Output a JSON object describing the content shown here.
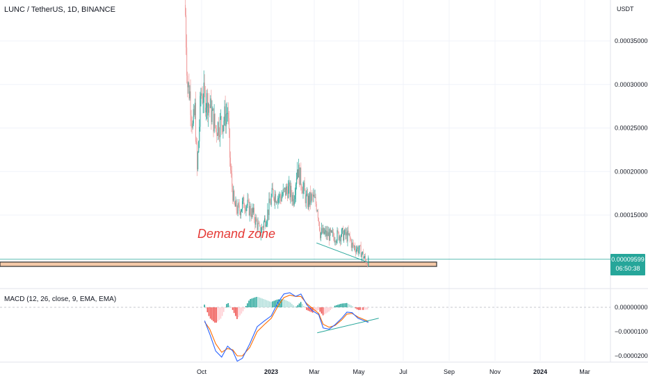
{
  "header": {
    "symbol_title": "LUNC / TetherUS, 1D, BINANCE",
    "currency": "USDT"
  },
  "price_tag": {
    "value": "0.00009599",
    "countdown": "06:50:38",
    "color": "#26a69a"
  },
  "annotation": {
    "text": "Demand zone",
    "color": "#e53935"
  },
  "macd": {
    "title": "MACD (12, 26, close, 9, EMA, EMA)"
  },
  "colors": {
    "up": "#26a69a",
    "down": "#ef9a9a",
    "macd_line": "#2962ff",
    "signal_line": "#ff6d00",
    "trendline": "#26a69a",
    "zone_fill": "#f4c9a8",
    "zone_border": "#3d3d3d"
  },
  "chart_data": [
    {
      "type": "candlestick",
      "title": "LUNC / TetherUS, 1D, BINANCE",
      "ylabel": "USDT",
      "y_ticks": [
        "0.00035000",
        "0.00030000",
        "0.00025000",
        "0.00020000",
        "0.00015000"
      ],
      "x_ticks": [
        "Oct",
        "2023",
        "Mar",
        "May",
        "Jul",
        "Sep",
        "Nov",
        "2024",
        "Mar"
      ],
      "ylim": [
        8.5e-06,
        0.00039
      ],
      "last_price": 9.599e-05,
      "demand_zone": [
        9.1e-05,
        9.6e-05
      ],
      "close_series": [
        {
          "date": "2022-09-09",
          "close": 0.00038
        },
        {
          "date": "2022-09-12",
          "close": 0.0003
        },
        {
          "date": "2022-09-15",
          "close": 0.00029
        },
        {
          "date": "2022-09-19",
          "close": 0.00025
        },
        {
          "date": "2022-09-22",
          "close": 0.00027
        },
        {
          "date": "2022-09-25",
          "close": 0.0002
        },
        {
          "date": "2022-09-30",
          "close": 0.00029
        },
        {
          "date": "2022-10-10",
          "close": 0.00028
        },
        {
          "date": "2022-10-20",
          "close": 0.00025
        },
        {
          "date": "2022-10-31",
          "close": 0.00026
        },
        {
          "date": "2022-11-05",
          "close": 0.00027
        },
        {
          "date": "2022-11-09",
          "close": 0.0002
        },
        {
          "date": "2022-11-14",
          "close": 0.00016
        },
        {
          "date": "2022-11-20",
          "close": 0.000155
        },
        {
          "date": "2022-11-28",
          "close": 0.000165
        },
        {
          "date": "2022-12-10",
          "close": 0.00015
        },
        {
          "date": "2022-12-19",
          "close": 0.00013
        },
        {
          "date": "2022-12-28",
          "close": 0.00015
        },
        {
          "date": "2023-01-05",
          "close": 0.000175
        },
        {
          "date": "2023-01-15",
          "close": 0.00017
        },
        {
          "date": "2023-01-25",
          "close": 0.00018
        },
        {
          "date": "2023-02-02",
          "close": 0.00017
        },
        {
          "date": "2023-02-07",
          "close": 0.000205
        },
        {
          "date": "2023-02-12",
          "close": 0.00019
        },
        {
          "date": "2023-02-20",
          "close": 0.000165
        },
        {
          "date": "2023-02-28",
          "close": 0.00017
        },
        {
          "date": "2023-03-06",
          "close": 0.00016
        },
        {
          "date": "2023-03-10",
          "close": 0.00013
        },
        {
          "date": "2023-03-18",
          "close": 0.000128
        },
        {
          "date": "2023-03-28",
          "close": 0.000125
        },
        {
          "date": "2023-04-08",
          "close": 0.000128
        },
        {
          "date": "2023-04-18",
          "close": 0.000125
        },
        {
          "date": "2023-04-22",
          "close": 0.000115
        },
        {
          "date": "2023-04-28",
          "close": 0.000112
        },
        {
          "date": "2023-05-04",
          "close": 0.000108
        },
        {
          "date": "2023-05-10",
          "close": 9.8e-05
        },
        {
          "date": "2023-05-14",
          "close": 9.599e-05
        }
      ]
    },
    {
      "type": "macd",
      "title": "MACD (12, 26, close, 9, EMA, EMA)",
      "y_ticks": [
        "0.00000000",
        "−0.00001000",
        "−0.00002000"
      ],
      "ylim": [
        -2.25e-05,
        7.5e-06
      ],
      "series": [
        {
          "name": "MACD",
          "values": [
            {
              "date": "2022-10-05",
              "value": -5.5e-06
            },
            {
              "date": "2022-10-12",
              "value": -1.1e-05
            },
            {
              "date": "2022-10-20",
              "value": -1.8e-05
            },
            {
              "date": "2022-10-28",
              "value": -2.05e-05
            },
            {
              "date": "2022-11-05",
              "value": -1.6e-05
            },
            {
              "date": "2022-11-12",
              "value": -1.8e-05
            },
            {
              "date": "2022-11-18",
              "value": -2.22e-05
            },
            {
              "date": "2022-11-25",
              "value": -2.1e-05
            },
            {
              "date": "2022-12-05",
              "value": -1.5e-05
            },
            {
              "date": "2022-12-15",
              "value": -8e-06
            },
            {
              "date": "2022-12-25",
              "value": -5.5e-06
            },
            {
              "date": "2023-01-03",
              "value": -3.5e-06
            },
            {
              "date": "2023-01-12",
              "value": 2e-06
            },
            {
              "date": "2023-01-20",
              "value": 5.5e-06
            },
            {
              "date": "2023-01-28",
              "value": 6e-06
            },
            {
              "date": "2023-02-05",
              "value": 4.5e-06
            },
            {
              "date": "2023-02-12",
              "value": 5.5e-06
            },
            {
              "date": "2023-02-20",
              "value": 1e-06
            },
            {
              "date": "2023-02-28",
              "value": -1.5e-06
            },
            {
              "date": "2023-03-08",
              "value": -3e-06
            },
            {
              "date": "2023-03-14",
              "value": -8.5e-06
            },
            {
              "date": "2023-03-22",
              "value": -9e-06
            },
            {
              "date": "2023-03-30",
              "value": -7.2e-06
            },
            {
              "date": "2023-04-08",
              "value": -4.5e-06
            },
            {
              "date": "2023-04-15",
              "value": -2e-06
            },
            {
              "date": "2023-04-22",
              "value": -2.2e-06
            },
            {
              "date": "2023-04-30",
              "value": -4.5e-06
            },
            {
              "date": "2023-05-08",
              "value": -5.5e-06
            },
            {
              "date": "2023-05-14",
              "value": -6.2e-06
            }
          ]
        },
        {
          "name": "Signal",
          "values": [
            {
              "date": "2022-10-05",
              "value": -6e-06
            },
            {
              "date": "2022-10-12",
              "value": -9e-06
            },
            {
              "date": "2022-10-20",
              "value": -1.5e-05
            },
            {
              "date": "2022-10-28",
              "value": -1.85e-05
            },
            {
              "date": "2022-11-05",
              "value": -1.7e-05
            },
            {
              "date": "2022-11-12",
              "value": -1.75e-05
            },
            {
              "date": "2022-11-18",
              "value": -2e-05
            },
            {
              "date": "2022-11-25",
              "value": -2e-05
            },
            {
              "date": "2022-12-05",
              "value": -1.65e-05
            },
            {
              "date": "2022-12-15",
              "value": -1e-05
            },
            {
              "date": "2022-12-25",
              "value": -7e-06
            },
            {
              "date": "2023-01-03",
              "value": -4.5e-06
            },
            {
              "date": "2023-01-12",
              "value": 5e-07
            },
            {
              "date": "2023-01-20",
              "value": 4e-06
            },
            {
              "date": "2023-01-28",
              "value": 5e-06
            },
            {
              "date": "2023-02-05",
              "value": 4.5e-06
            },
            {
              "date": "2023-02-12",
              "value": 4.5e-06
            },
            {
              "date": "2023-02-20",
              "value": 1.5e-06
            },
            {
              "date": "2023-02-28",
              "value": -5e-07
            },
            {
              "date": "2023-03-08",
              "value": -2.5e-06
            },
            {
              "date": "2023-03-14",
              "value": -7e-06
            },
            {
              "date": "2023-03-22",
              "value": -8.2e-06
            },
            {
              "date": "2023-03-30",
              "value": -7.5e-06
            },
            {
              "date": "2023-04-08",
              "value": -5.2e-06
            },
            {
              "date": "2023-04-15",
              "value": -2.8e-06
            },
            {
              "date": "2023-04-22",
              "value": -2.5e-06
            },
            {
              "date": "2023-04-30",
              "value": -4e-06
            },
            {
              "date": "2023-05-08",
              "value": -5e-06
            },
            {
              "date": "2023-05-14",
              "value": -5.8e-06
            }
          ]
        }
      ]
    }
  ]
}
